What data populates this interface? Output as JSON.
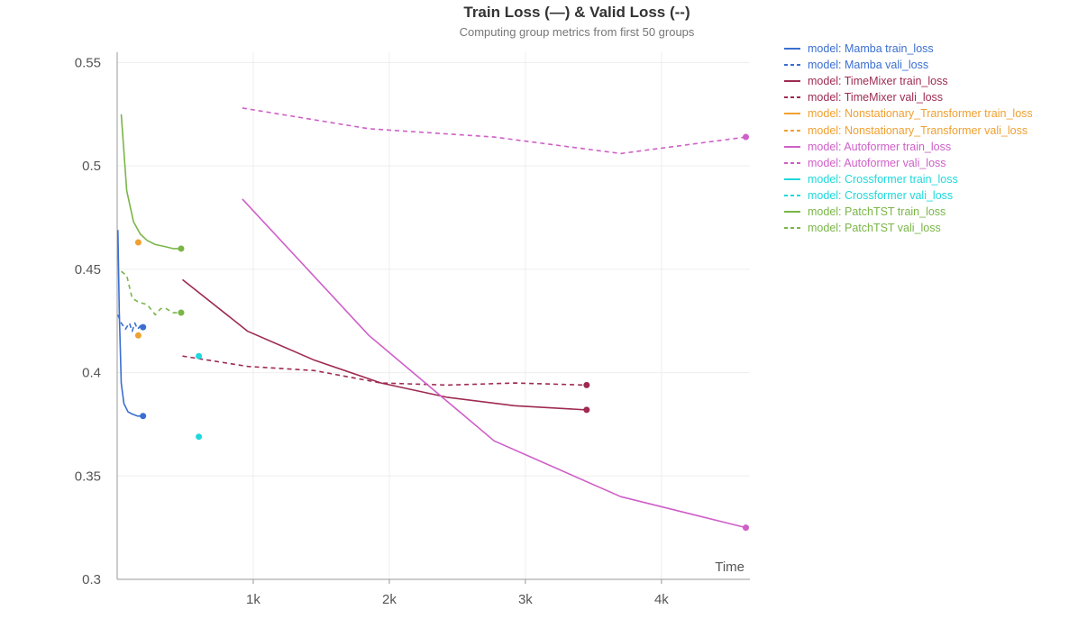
{
  "chart_data": {
    "type": "line",
    "title": "Train Loss (—) & Valid Loss (--)",
    "subtitle": "Computing group metrics from first 50 groups",
    "xlabel": "Time",
    "ylabel": "",
    "xlim": [
      0,
      4650
    ],
    "ylim": [
      0.3,
      0.555
    ],
    "x_ticks": [
      1000,
      2000,
      3000,
      4000
    ],
    "x_tick_labels": [
      "1k",
      "2k",
      "3k",
      "4k"
    ],
    "y_ticks": [
      0.3,
      0.35,
      0.4,
      0.45,
      0.5,
      0.55
    ],
    "y_tick_labels": [
      "0.3",
      "0.35",
      "0.4",
      "0.45",
      "0.5",
      "0.55"
    ],
    "grid": true,
    "legend_position": "right",
    "series": [
      {
        "name": "model: Mamba train_loss",
        "color": "#3a6fd1",
        "dash": false,
        "x": [
          5,
          15,
          30,
          50,
          80,
          110,
          150,
          190
        ],
        "y": [
          0.469,
          0.43,
          0.395,
          0.385,
          0.381,
          0.38,
          0.379,
          0.379
        ]
      },
      {
        "name": "model: Mamba vali_loss",
        "color": "#3a6fd1",
        "dash": true,
        "x": [
          5,
          30,
          60,
          90,
          110,
          130,
          150,
          175,
          190
        ],
        "y": [
          0.428,
          0.424,
          0.421,
          0.424,
          0.42,
          0.424,
          0.421,
          0.423,
          0.422
        ]
      },
      {
        "name": "model: TimeMixer train_loss",
        "color": "#9e2a52",
        "dash": false,
        "x": [
          480,
          960,
          1450,
          1940,
          2430,
          2920,
          3450
        ],
        "y": [
          0.445,
          0.42,
          0.406,
          0.395,
          0.388,
          0.384,
          0.382
        ]
      },
      {
        "name": "model: TimeMixer vali_loss",
        "color": "#9e2a52",
        "dash": true,
        "x": [
          480,
          960,
          1450,
          1940,
          2430,
          2920,
          3450
        ],
        "y": [
          0.408,
          0.403,
          0.401,
          0.395,
          0.394,
          0.395,
          0.394
        ]
      },
      {
        "name": "model: Nonstationary_Transformer train_loss",
        "color": "#f0a030",
        "dash": false,
        "x": [
          155
        ],
        "y": [
          0.463
        ]
      },
      {
        "name": "model: Nonstationary_Transformer vali_loss",
        "color": "#f0a030",
        "dash": true,
        "x": [
          155
        ],
        "y": [
          0.418
        ]
      },
      {
        "name": "model: Autoformer train_loss",
        "color": "#cf5fc8",
        "dash": false,
        "x": [
          920,
          1850,
          2770,
          3700,
          4620
        ],
        "y": [
          0.484,
          0.418,
          0.367,
          0.34,
          0.325
        ]
      },
      {
        "name": "model: Autoformer vali_loss",
        "color": "#cf5fc8",
        "dash": true,
        "x": [
          920,
          1850,
          2770,
          3700,
          4620
        ],
        "y": [
          0.528,
          0.518,
          0.514,
          0.506,
          0.514
        ]
      },
      {
        "name": "model: Crossformer train_loss",
        "color": "#1fd9dc",
        "dash": false,
        "x": [
          600
        ],
        "y": [
          0.369
        ]
      },
      {
        "name": "model: Crossformer vali_loss",
        "color": "#1fd9dc",
        "dash": true,
        "x": [
          600
        ],
        "y": [
          0.408
        ]
      },
      {
        "name": "model: PatchTST train_loss",
        "color": "#7ab648",
        "dash": false,
        "x": [
          30,
          70,
          120,
          170,
          220,
          280,
          350,
          410,
          470
        ],
        "y": [
          0.525,
          0.488,
          0.473,
          0.467,
          0.464,
          0.462,
          0.461,
          0.46,
          0.46
        ]
      },
      {
        "name": "model: PatchTST vali_loss",
        "color": "#7ab648",
        "dash": true,
        "x": [
          30,
          70,
          110,
          160,
          220,
          280,
          320,
          360,
          410,
          470
        ],
        "y": [
          0.449,
          0.447,
          0.436,
          0.434,
          0.433,
          0.428,
          0.431,
          0.431,
          0.429,
          0.429
        ]
      }
    ]
  }
}
